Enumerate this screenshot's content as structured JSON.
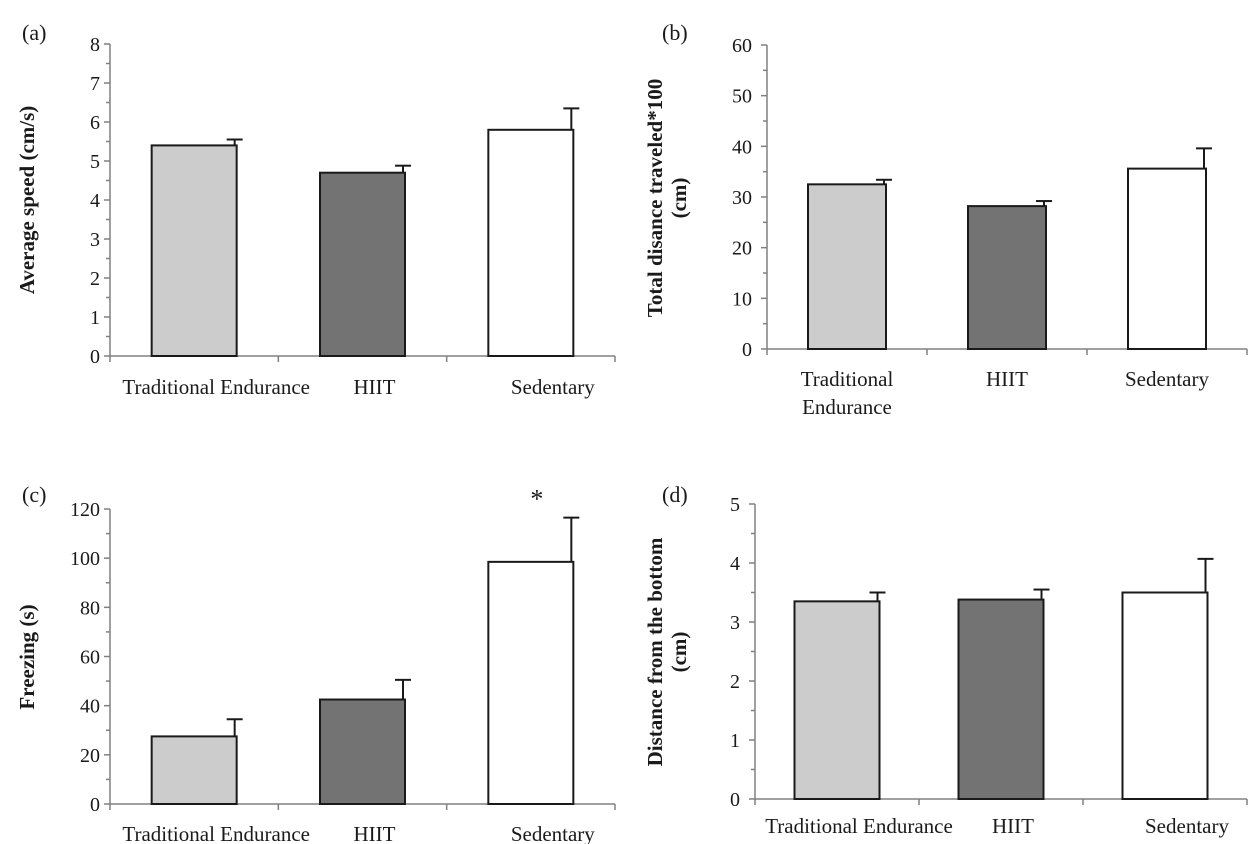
{
  "chart_data": [
    {
      "type": "bar",
      "panel_label": "(a)",
      "categories": [
        [
          "Traditional Endurance"
        ],
        [
          "HIIT"
        ],
        [
          "Sedentary"
        ]
      ],
      "values": [
        5.4,
        4.7,
        5.8
      ],
      "errors": [
        0.15,
        0.18,
        0.55
      ],
      "annotations": [
        "",
        "",
        ""
      ],
      "ylabel": [
        "Average speed (cm/s)"
      ],
      "ylim": [
        0,
        8
      ],
      "yticks": [
        0,
        1,
        2,
        3,
        4,
        5,
        6,
        7,
        8
      ],
      "colors": [
        "#cccccc",
        "#737373",
        "#ffffff"
      ],
      "grid": false
    },
    {
      "type": "bar",
      "panel_label": "(b)",
      "categories": [
        [
          "Traditional",
          "Endurance"
        ],
        [
          "HIIT"
        ],
        [
          "Sedentary"
        ]
      ],
      "values": [
        32.5,
        28.2,
        35.6
      ],
      "errors": [
        0.9,
        1.0,
        4.0
      ],
      "annotations": [
        "",
        "",
        ""
      ],
      "ylabel": [
        "Total disance traveled*100",
        "(cm)"
      ],
      "ylim": [
        0,
        60
      ],
      "yticks": [
        0,
        10,
        20,
        30,
        40,
        50,
        60
      ],
      "colors": [
        "#cccccc",
        "#737373",
        "#ffffff"
      ],
      "grid": false
    },
    {
      "type": "bar",
      "panel_label": "(c)",
      "categories": [
        [
          "Traditional Endurance"
        ],
        [
          "HIIT"
        ],
        [
          "Sedentary"
        ]
      ],
      "values": [
        27.5,
        42.5,
        98.5
      ],
      "errors": [
        7.0,
        8.0,
        18.0
      ],
      "annotations": [
        "",
        "",
        "*"
      ],
      "ylabel": [
        "Freezing (s)"
      ],
      "ylim": [
        0,
        120
      ],
      "yticks": [
        0,
        20,
        40,
        60,
        80,
        100,
        120
      ],
      "colors": [
        "#cccccc",
        "#737373",
        "#ffffff"
      ],
      "grid": false
    },
    {
      "type": "bar",
      "panel_label": "(d)",
      "categories": [
        [
          "Traditional Endurance"
        ],
        [
          "HIIT"
        ],
        [
          "Sedentary"
        ]
      ],
      "values": [
        3.35,
        3.38,
        3.5
      ],
      "errors": [
        0.15,
        0.17,
        0.57
      ],
      "annotations": [
        "",
        "",
        ""
      ],
      "ylabel": [
        "Distance from the bottom",
        "(cm)"
      ],
      "ylim": [
        0,
        5
      ],
      "yticks": [
        0,
        1,
        2,
        3,
        4,
        5
      ],
      "colors": [
        "#cccccc",
        "#737373",
        "#ffffff"
      ],
      "grid": false
    }
  ]
}
